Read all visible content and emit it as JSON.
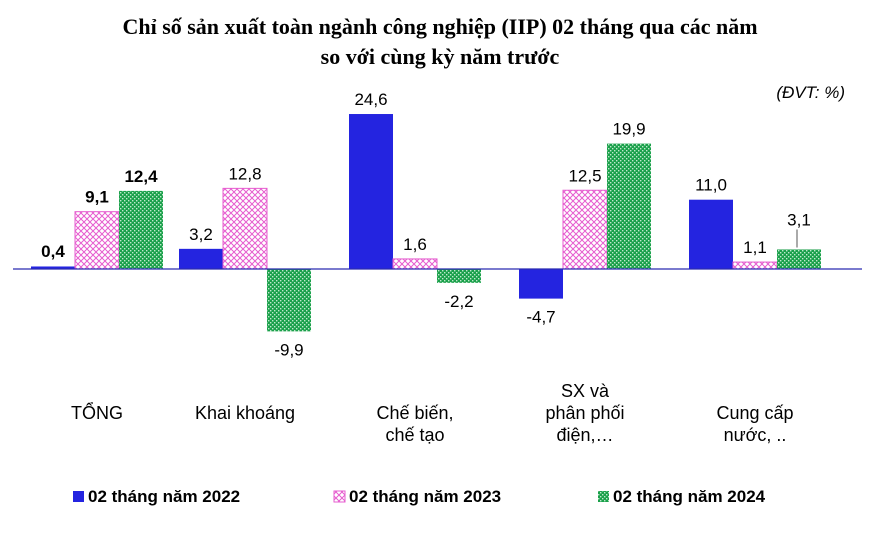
{
  "chart_data": {
    "type": "bar",
    "title_lines": [
      "Chỉ số sản xuất toàn ngành công nghiệp (IIP) 02 tháng qua các năm",
      "so với cùng kỳ năm trước"
    ],
    "unit_note": "(ĐVT: %)",
    "categories": [
      [
        "TỔNG"
      ],
      [
        "Khai  khoáng"
      ],
      [
        "Chế biến,",
        "chế tạo"
      ],
      [
        "SX và",
        "phân phối",
        "điện,…"
      ],
      [
        "Cung cấp",
        "nước, .."
      ]
    ],
    "series": [
      {
        "name": "02 tháng năm 2022",
        "values": [
          0.4,
          3.2,
          24.6,
          -4.7,
          11.0
        ],
        "labels": [
          "0,4",
          "3,2",
          "24,6",
          "-4,7",
          "11,0"
        ],
        "color": "#2424e0",
        "pattern": "solid"
      },
      {
        "name": "02 tháng năm 2023",
        "values": [
          9.1,
          12.8,
          1.6,
          12.5,
          1.1
        ],
        "labels": [
          "9,1",
          "12,8",
          "1,6",
          "12,5",
          "1,1"
        ],
        "color": "#e65ccf",
        "pattern": "crosshatch"
      },
      {
        "name": "02 tháng năm 2024",
        "values": [
          12.4,
          -9.9,
          -2.2,
          19.9,
          3.1
        ],
        "labels": [
          "12,4",
          "-9,9",
          "-2,2",
          "19,9",
          "3,1"
        ],
        "color": "#1aa04a",
        "pattern": "dots"
      }
    ],
    "bold_labels_category": 0,
    "ylim": [
      -10,
      25
    ],
    "grid": false,
    "legend_position": "bottom"
  }
}
